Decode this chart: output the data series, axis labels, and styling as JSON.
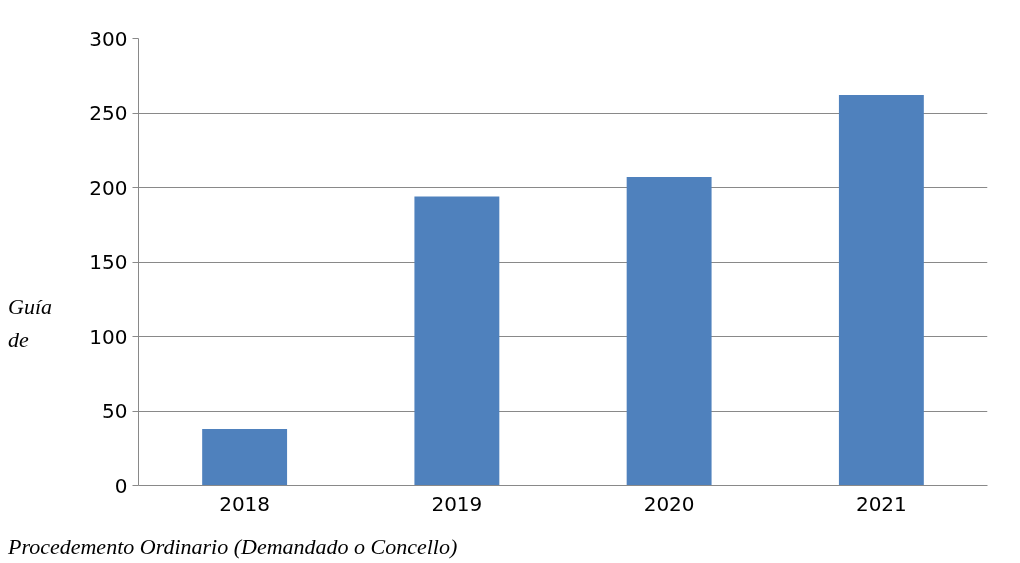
{
  "chart_data": {
    "type": "bar",
    "ylabel": "Guía de",
    "xlabel": "Procedemento Ordinario (Demandado o Concello)",
    "categories": [
      "2018",
      "2019",
      "2020",
      "2021"
    ],
    "values": [
      38,
      194,
      207,
      262
    ],
    "color": "#4f81bd",
    "ylim": [
      0,
      300
    ],
    "yticks": [
      0,
      50,
      100,
      150,
      200,
      250,
      300
    ],
    "grid": "y"
  }
}
